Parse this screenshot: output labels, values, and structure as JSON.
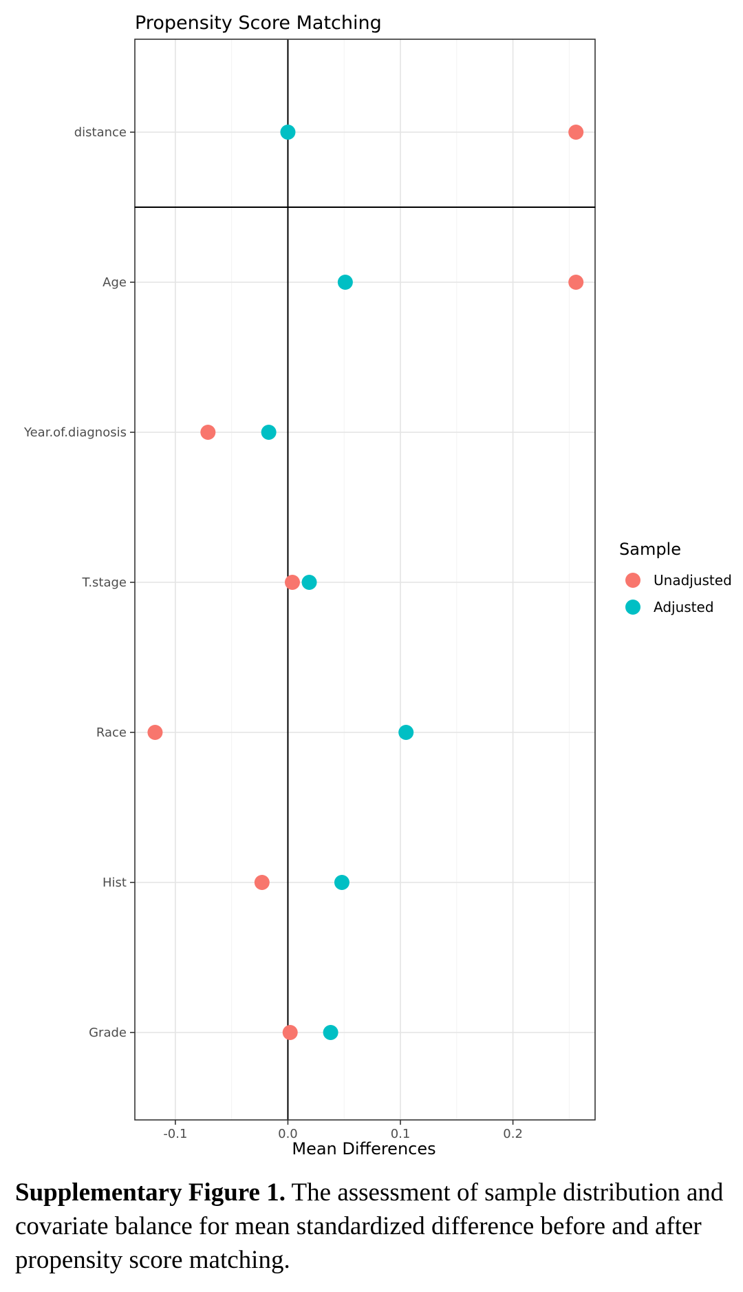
{
  "chart_data": {
    "type": "scatter",
    "title": "Propensity Score Matching",
    "xlabel": "Mean Differences",
    "ylabel": "",
    "xlim": [
      -0.136,
      0.273
    ],
    "xticks": [
      -0.1,
      0.0,
      0.1,
      0.2
    ],
    "xtick_labels": [
      "-0.1",
      "0.0",
      "0.1",
      "0.2"
    ],
    "grid": true,
    "reference_line_x": 0,
    "categories": [
      "distance",
      "Age",
      "Year.of.diagnosis",
      "T.stage",
      "Race",
      "Hist",
      "Grade"
    ],
    "legend": {
      "title": "Sample",
      "placement": "right",
      "entries": [
        "Unadjusted",
        "Adjusted"
      ]
    },
    "series": [
      {
        "name": "Unadjusted",
        "color": "#F8766D",
        "values": [
          0.256,
          0.256,
          -0.071,
          0.004,
          -0.118,
          -0.023,
          0.002
        ]
      },
      {
        "name": "Adjusted",
        "color": "#00BFC4",
        "values": [
          0.0,
          0.051,
          -0.017,
          0.019,
          0.105,
          0.048,
          0.038
        ]
      }
    ]
  },
  "caption": {
    "label": "Supplementary Figure 1.",
    "text": " The assessment of sample distribution and covariate balance for mean standardized difference before and after propensity score matching."
  }
}
